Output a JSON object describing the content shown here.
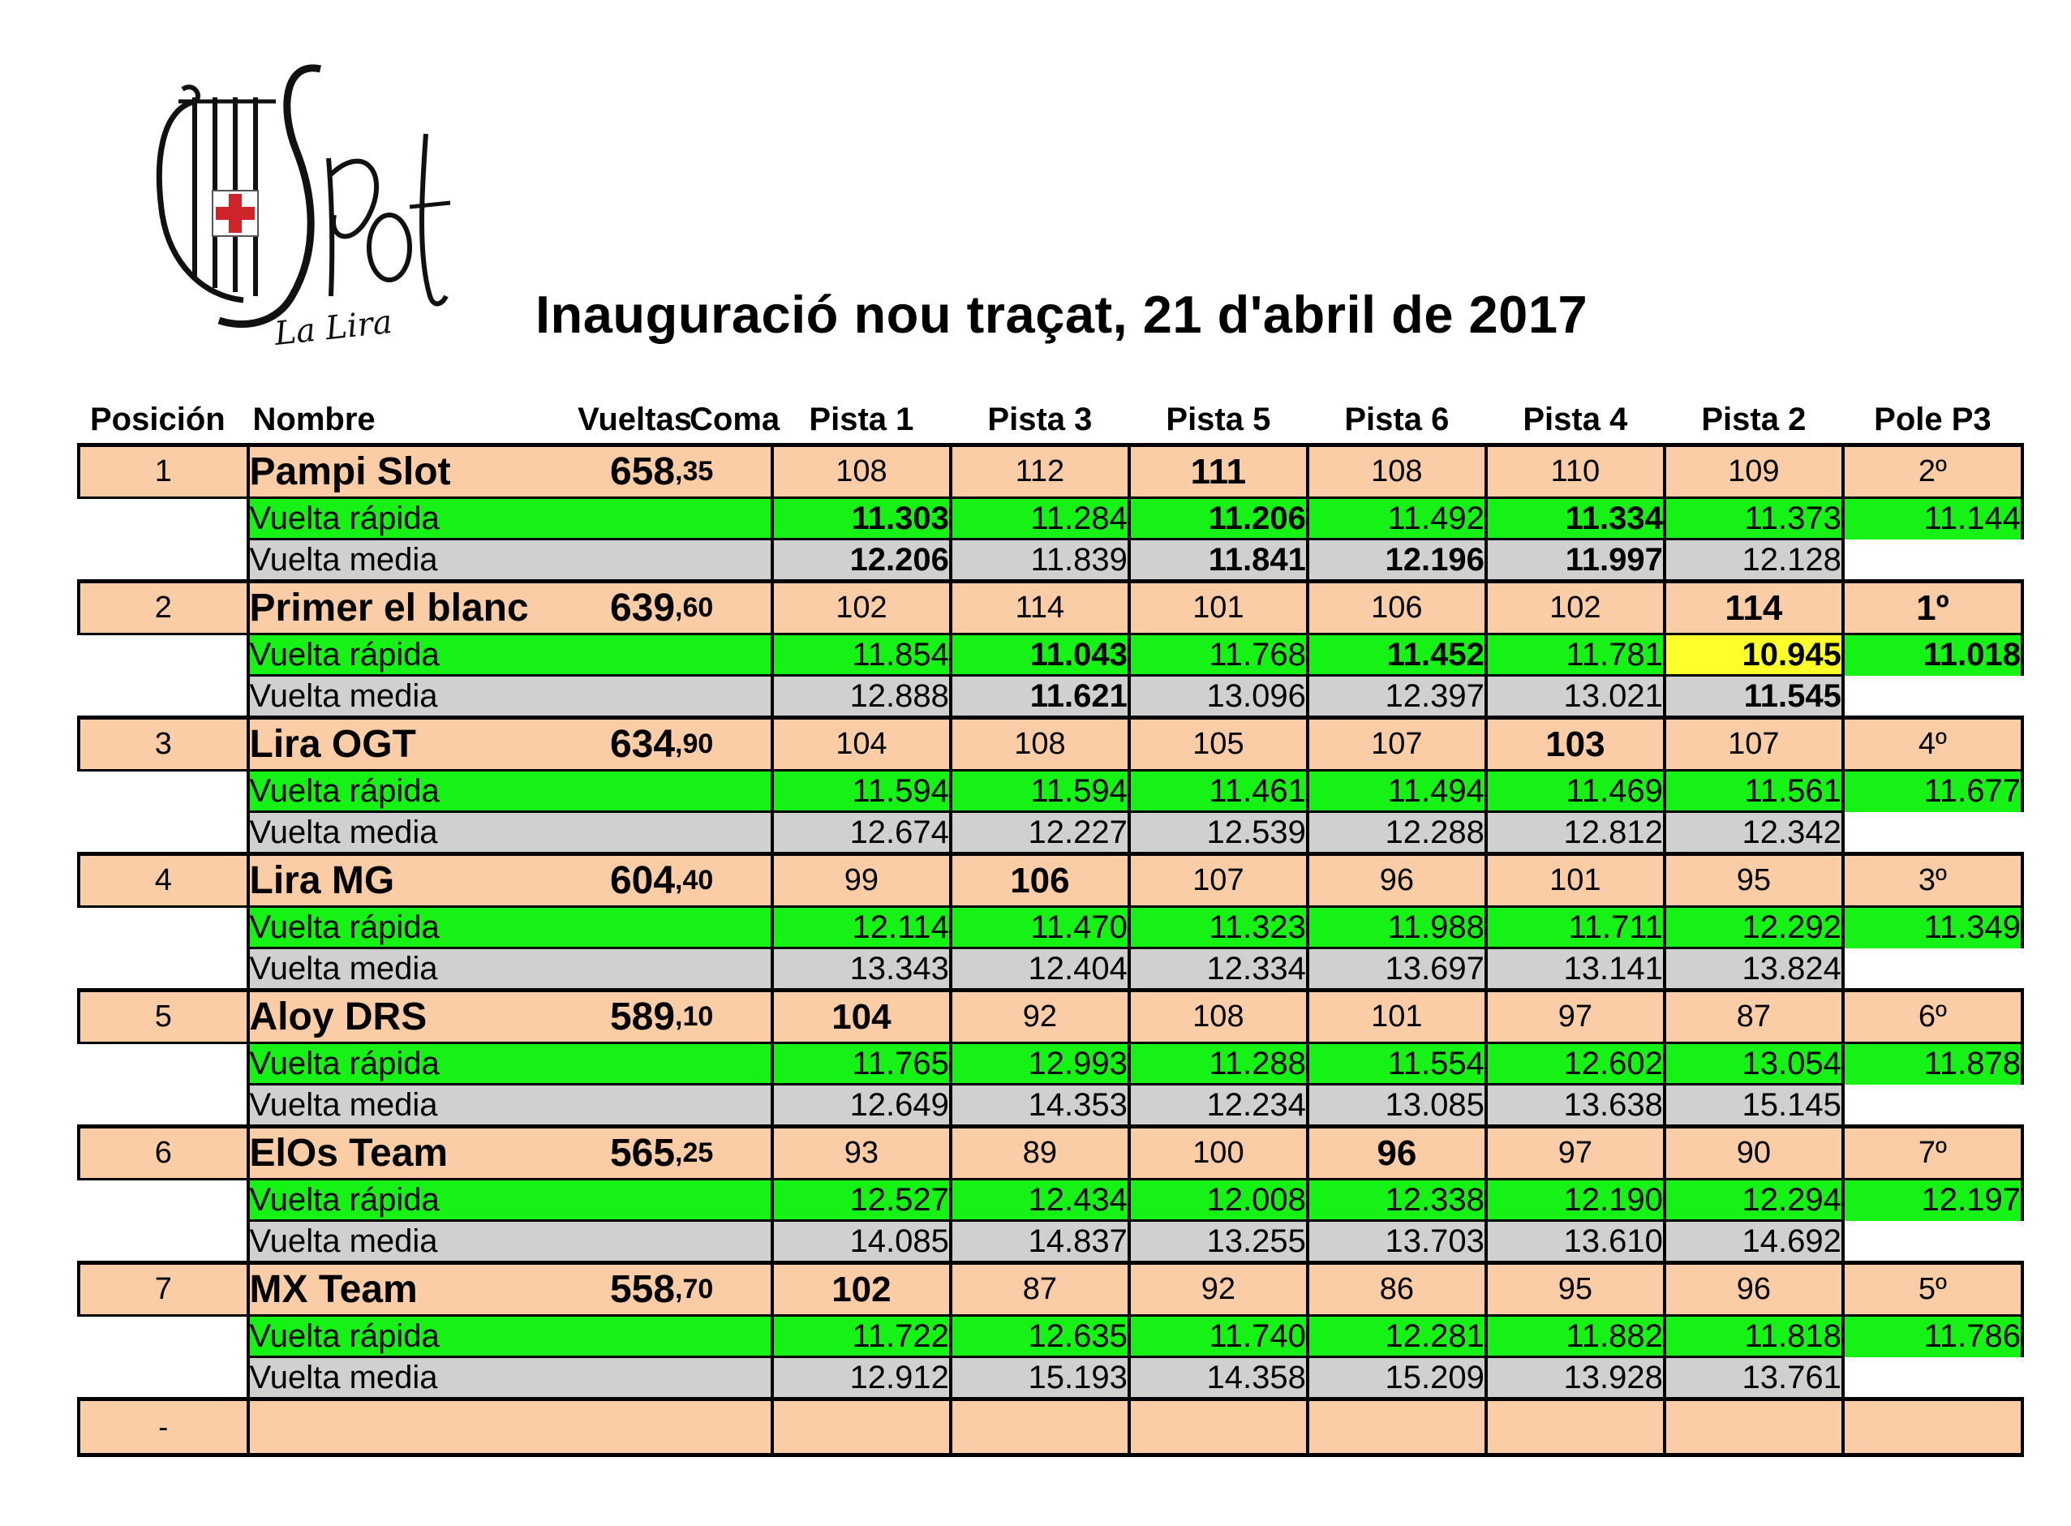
{
  "logo": {
    "name": "La Lira Slot logo",
    "text_brand": "Slot",
    "text_sub": "La Lira"
  },
  "title": "Inauguració nou traçat, 21 d'abril de 2017",
  "headers": [
    "Posición",
    "Nombre",
    "Vueltas",
    "Coma",
    "Pista 1",
    "Pista 3",
    "Pista 5",
    "Pista 6",
    "Pista 4",
    "Pista 2",
    "Pole P3"
  ],
  "labels": {
    "fast": "Vuelta rápida",
    "avg": "Vuelta media"
  },
  "colors": {
    "team_row": "#fbcda6",
    "fast_row": "#16f116",
    "avg_row": "#d0d0d0",
    "record": "#ffff2a"
  },
  "teams": [
    {
      "pos": "1",
      "name": "Pampi Slot",
      "laps": "658",
      "coma": ",35",
      "tracks": [
        "108",
        "112",
        "111",
        "108",
        "110",
        "109"
      ],
      "pole": "2º",
      "best_track": 2,
      "fast": [
        "11.303",
        "11.284",
        "11.206",
        "11.492",
        "11.334",
        "11.373"
      ],
      "fast_pole": "11.144",
      "fast_bold": [
        0,
        2,
        4
      ],
      "avg": [
        "12.206",
        "11.839",
        "11.841",
        "12.196",
        "11.997",
        "12.128"
      ],
      "avg_bold": [
        0,
        2,
        3,
        4
      ]
    },
    {
      "pos": "2",
      "name": "Primer el blanc",
      "laps": "639",
      "coma": ",60",
      "tracks": [
        "102",
        "114",
        "101",
        "106",
        "102",
        "114"
      ],
      "pole": "1º",
      "best_track": 5,
      "pole_bold": true,
      "fast": [
        "11.854",
        "11.043",
        "11.768",
        "11.452",
        "11.781",
        "10.945"
      ],
      "fast_pole": "11.018",
      "fast_bold": [
        1,
        3
      ],
      "fast_record": 5,
      "fast_pole_bold": true,
      "avg": [
        "12.888",
        "11.621",
        "13.096",
        "12.397",
        "13.021",
        "11.545"
      ],
      "avg_bold": [
        1,
        5
      ]
    },
    {
      "pos": "3",
      "name": "Lira OGT",
      "laps": "634",
      "coma": ",90",
      "tracks": [
        "104",
        "108",
        "105",
        "107",
        "103",
        "107"
      ],
      "pole": "4º",
      "best_track": 4,
      "fast": [
        "11.594",
        "11.594",
        "11.461",
        "11.494",
        "11.469",
        "11.561"
      ],
      "fast_pole": "11.677",
      "fast_bold": [],
      "avg": [
        "12.674",
        "12.227",
        "12.539",
        "12.288",
        "12.812",
        "12.342"
      ],
      "avg_bold": []
    },
    {
      "pos": "4",
      "name": "Lira MG",
      "laps": "604",
      "coma": ",40",
      "tracks": [
        "99",
        "106",
        "107",
        "96",
        "101",
        "95"
      ],
      "pole": "3º",
      "best_track": 1,
      "fast": [
        "12.114",
        "11.470",
        "11.323",
        "11.988",
        "11.711",
        "12.292"
      ],
      "fast_pole": "11.349",
      "fast_bold": [],
      "avg": [
        "13.343",
        "12.404",
        "12.334",
        "13.697",
        "13.141",
        "13.824"
      ],
      "avg_bold": []
    },
    {
      "pos": "5",
      "name": "Aloy DRS",
      "laps": "589",
      "coma": ",10",
      "tracks": [
        "104",
        "92",
        "108",
        "101",
        "97",
        "87"
      ],
      "pole": "6º",
      "best_track": 0,
      "fast": [
        "11.765",
        "12.993",
        "11.288",
        "11.554",
        "12.602",
        "13.054"
      ],
      "fast_pole": "11.878",
      "fast_bold": [],
      "avg": [
        "12.649",
        "14.353",
        "12.234",
        "13.085",
        "13.638",
        "15.145"
      ],
      "avg_bold": []
    },
    {
      "pos": "6",
      "name": "ElOs Team",
      "laps": "565",
      "coma": ",25",
      "tracks": [
        "93",
        "89",
        "100",
        "96",
        "97",
        "90"
      ],
      "pole": "7º",
      "best_track": 3,
      "fast": [
        "12.527",
        "12.434",
        "12.008",
        "12.338",
        "12.190",
        "12.294"
      ],
      "fast_pole": "12.197",
      "fast_bold": [],
      "avg": [
        "14.085",
        "14.837",
        "13.255",
        "13.703",
        "13.610",
        "14.692"
      ],
      "avg_bold": []
    },
    {
      "pos": "7",
      "name": "MX Team",
      "laps": "558",
      "coma": ",70",
      "tracks": [
        "102",
        "87",
        "92",
        "86",
        "95",
        "96"
      ],
      "pole": "5º",
      "best_track": 0,
      "fast": [
        "11.722",
        "12.635",
        "11.740",
        "12.281",
        "11.882",
        "11.818"
      ],
      "fast_pole": "11.786",
      "fast_bold": [],
      "avg": [
        "12.912",
        "15.193",
        "14.358",
        "15.209",
        "13.928",
        "13.761"
      ],
      "avg_bold": []
    }
  ],
  "final_row": {
    "pos": "-"
  }
}
